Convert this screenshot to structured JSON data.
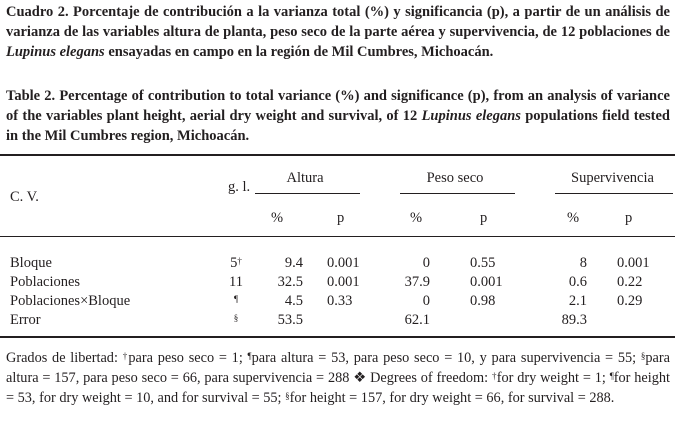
{
  "caption_es": {
    "prefix": "Cuadro 2. Porcentaje de contribución a la varianza total (%) y significancia (p), a partir de un análisis de varianza de las variables altura de planta, peso seco de la parte aérea y supervivencia, de 12 poblaciones de ",
    "species": "Lupinus elegans",
    "suffix": " ensayadas en campo en  la región de Mil Cumbres, Michoacán."
  },
  "caption_en": {
    "prefix": "Table 2. Percentage of contribution to total variance (%) and significance (p), from an analysis of variance of the variables plant height, aerial dry weight and survival, of 12 ",
    "species": "Lupinus elegans",
    "suffix": " populations field tested in the Mil Cumbres region, Michoacán."
  },
  "table": {
    "headers": {
      "cv": "C. V.",
      "gl": "g. l.",
      "groups": [
        "Altura",
        "Peso seco",
        "Supervivencia"
      ],
      "pct": "%",
      "p": "p"
    },
    "rows": [
      {
        "cv": "Bloque",
        "gl": "5",
        "gl_mark": "†",
        "vals": [
          "9.4",
          "0.001",
          "0",
          "0.55",
          "8",
          "0.001"
        ]
      },
      {
        "cv": "Poblaciones",
        "gl": "11",
        "gl_mark": "",
        "vals": [
          "32.5",
          "0.001",
          "37.9",
          "0.001",
          "0.6",
          "0.22"
        ]
      },
      {
        "cv": "Poblaciones×Bloque",
        "gl": "",
        "gl_mark": "¶",
        "vals": [
          "4.5",
          "0.33",
          "0",
          "0.98",
          "2.1",
          "0.29"
        ]
      },
      {
        "cv": "Error",
        "gl": "",
        "gl_mark": "§",
        "vals": [
          "53.5",
          "",
          "62.1",
          "",
          "89.3",
          ""
        ]
      }
    ]
  },
  "footnote": {
    "t1": "Grados de libertad: ",
    "m1": "†",
    "t2": "para peso seco = 1; ",
    "m2": "¶",
    "t3": "para altura = 53, para peso seco = 10, y para supervivencia = 55; ",
    "m3": "§",
    "t4": "para altura = 157, para peso seco = 66, para supervivencia = 288 ❖ Degrees of freedom: ",
    "m4": "†",
    "t5": "for dry weight = 1; ",
    "m5": "¶",
    "t6": "for height = 53, for dry weight = 10, and for survival = 55; ",
    "m6": "§",
    "t7": "for height = 157, for dry weight = 66, for survival = 288."
  }
}
